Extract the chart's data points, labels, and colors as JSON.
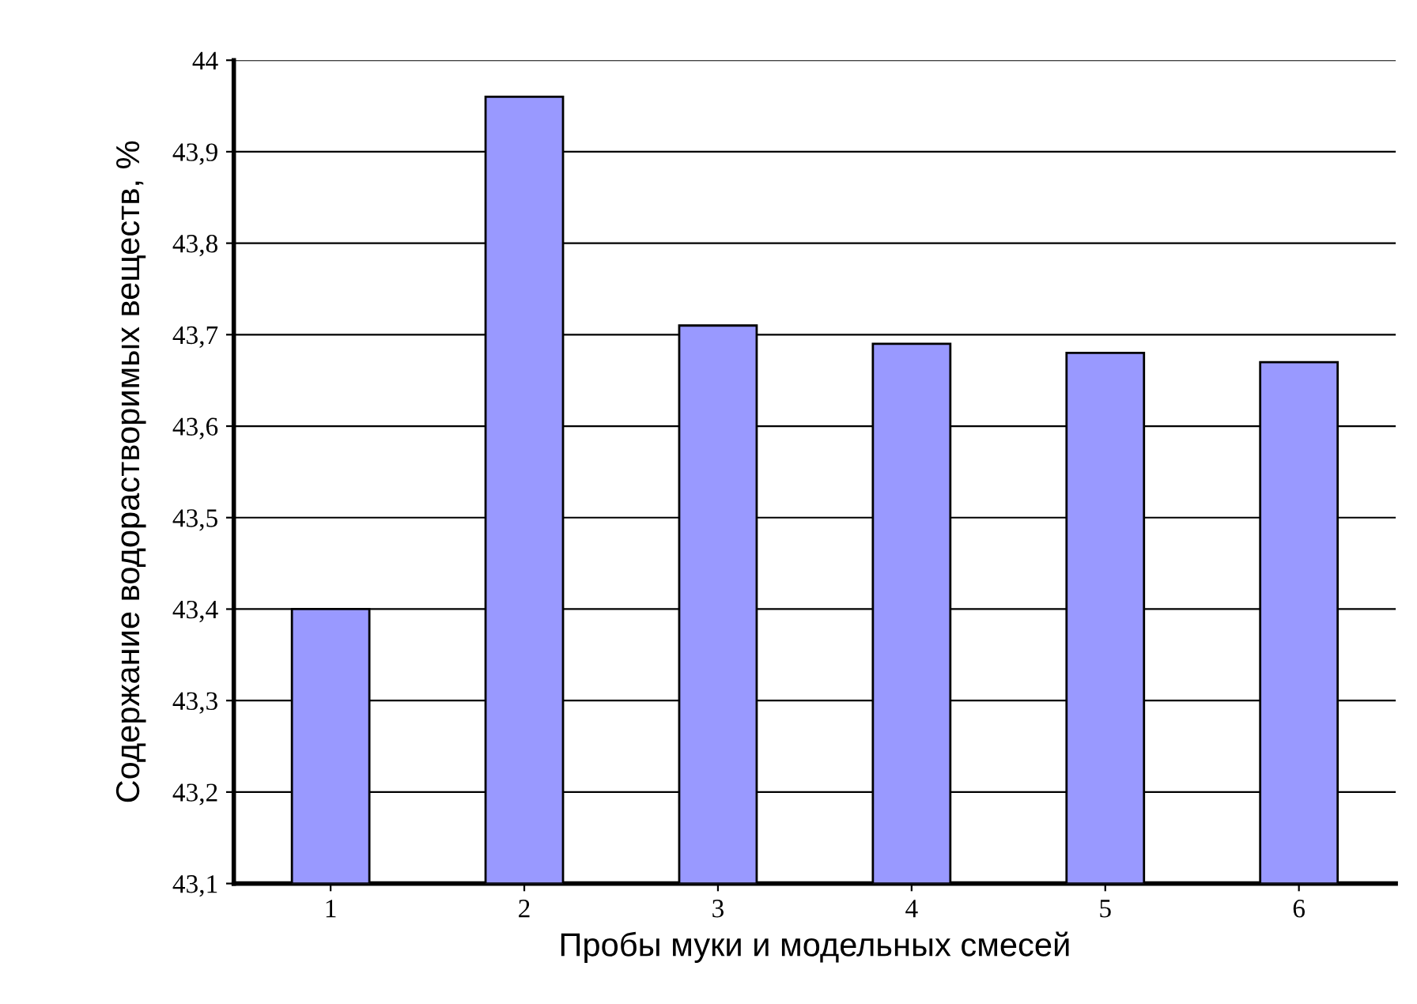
{
  "chart_data": {
    "type": "bar",
    "xlabel": "Пробы муки и модельных смесей",
    "ylabel": "Содержание водорастворимых веществ, %",
    "categories": [
      "1",
      "2",
      "3",
      "4",
      "5",
      "6"
    ],
    "values": [
      43.4,
      43.96,
      43.71,
      43.69,
      43.68,
      43.67
    ],
    "color": "#9999ff",
    "ylim": [
      43.1,
      44
    ],
    "yticks": [
      {
        "value": 43.1,
        "label": "43,1"
      },
      {
        "value": 43.2,
        "label": "43,2"
      },
      {
        "value": 43.3,
        "label": "43,3"
      },
      {
        "value": 43.4,
        "label": "43,4"
      },
      {
        "value": 43.5,
        "label": "43,5"
      },
      {
        "value": 43.6,
        "label": "43,6"
      },
      {
        "value": 43.7,
        "label": "43,7"
      },
      {
        "value": 43.8,
        "label": "43,8"
      },
      {
        "value": 43.9,
        "label": "43,9"
      },
      {
        "value": 44,
        "label": "44"
      }
    ],
    "grid": "y"
  }
}
